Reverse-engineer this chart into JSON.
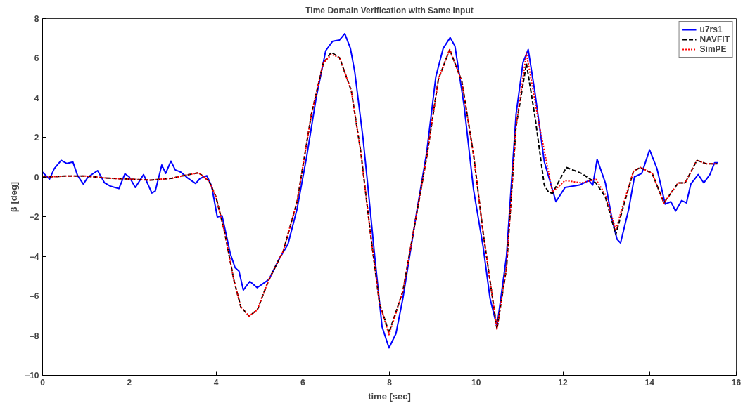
{
  "chart_data": {
    "type": "line",
    "title": "Time Domain Verification with Same Input",
    "xlabel": "time [sec]",
    "ylabel": "β [deg]",
    "xlim": [
      0,
      16
    ],
    "ylim": [
      -10,
      8
    ],
    "xticks": [
      0,
      2,
      4,
      6,
      8,
      10,
      12,
      14,
      16
    ],
    "yticks": [
      -10,
      -8,
      -6,
      -4,
      -2,
      0,
      2,
      4,
      6,
      8
    ],
    "grid": false,
    "legend": "top right",
    "series": [
      {
        "name": "u7rs1",
        "color": "#0000ff",
        "line_style": "solid",
        "x": [
          0,
          0.16,
          0.27,
          0.43,
          0.56,
          0.7,
          0.81,
          0.94,
          1.05,
          1.27,
          1.43,
          1.57,
          1.76,
          1.9,
          2.0,
          2.14,
          2.33,
          2.52,
          2.6,
          2.75,
          2.84,
          2.96,
          3.06,
          3.19,
          3.35,
          3.53,
          3.63,
          3.79,
          3.9,
          4.03,
          4.14,
          4.33,
          4.44,
          4.53,
          4.63,
          4.78,
          4.95,
          5.22,
          5.44,
          5.66,
          5.87,
          6.09,
          6.31,
          6.53,
          6.69,
          6.85,
          6.97,
          7.1,
          7.2,
          7.39,
          7.5,
          7.66,
          7.83,
          7.99,
          8.15,
          8.31,
          8.64,
          8.86,
          9.07,
          9.24,
          9.4,
          9.51,
          9.72,
          9.94,
          10.16,
          10.32,
          10.48,
          10.7,
          10.92,
          11.08,
          11.2,
          11.35,
          11.57,
          11.84,
          12.05,
          12.38,
          12.6,
          12.69,
          12.79,
          12.98,
          13.14,
          13.25,
          13.33,
          13.52,
          13.65,
          13.82,
          14.0,
          14.17,
          14.36,
          14.49,
          14.6,
          14.74,
          14.85,
          14.95,
          15.12,
          15.25,
          15.39,
          15.5,
          15.58
        ],
        "values": [
          0.25,
          -0.1,
          0.43,
          0.85,
          0.69,
          0.76,
          0.07,
          -0.35,
          0.01,
          0.33,
          -0.29,
          -0.46,
          -0.58,
          0.17,
          0.01,
          -0.52,
          0.13,
          -0.8,
          -0.7,
          0.61,
          0.19,
          0.81,
          0.37,
          0.25,
          -0.05,
          -0.32,
          -0.07,
          0.07,
          -0.46,
          -2.01,
          -1.95,
          -3.86,
          -4.57,
          -4.75,
          -5.7,
          -5.26,
          -5.58,
          -5.17,
          -4.2,
          -3.38,
          -1.6,
          1.02,
          4.0,
          6.38,
          6.86,
          6.92,
          7.24,
          6.5,
          5.31,
          1.98,
          -0.4,
          -3.98,
          -7.55,
          -8.62,
          -7.9,
          -6.12,
          -1.6,
          1.26,
          5.07,
          6.5,
          7.04,
          6.62,
          3.64,
          -0.64,
          -3.5,
          -6.12,
          -7.55,
          -3.98,
          3.17,
          5.79,
          6.44,
          4.36,
          0.79,
          -1.24,
          -0.52,
          -0.4,
          -0.17,
          -0.4,
          0.9,
          -0.29,
          -2.19,
          -3.14,
          -3.32,
          -1.6,
          0.01,
          0.19,
          1.38,
          0.43,
          -1.36,
          -1.24,
          -1.71,
          -1.18,
          -1.3,
          -0.35,
          0.13,
          -0.29,
          0.13,
          0.73,
          0.73
        ]
      },
      {
        "name": "NAVFIT",
        "color": "#000000",
        "line_style": "dashed",
        "x": [
          0,
          0.5,
          1.0,
          1.5,
          2.0,
          2.5,
          3.0,
          3.3,
          3.6,
          3.84,
          4.0,
          4.2,
          4.41,
          4.57,
          4.76,
          4.95,
          5.22,
          5.55,
          5.87,
          6.2,
          6.47,
          6.66,
          6.85,
          7.12,
          7.34,
          7.56,
          7.77,
          7.99,
          8.31,
          8.86,
          9.13,
          9.39,
          9.67,
          9.94,
          10.16,
          10.48,
          10.7,
          10.92,
          11.16,
          11.36,
          11.57,
          11.67,
          11.76,
          12.08,
          12.43,
          12.76,
          12.98,
          13.22,
          13.41,
          13.63,
          13.79,
          14.06,
          14.33,
          14.66,
          14.82,
          15.09,
          15.31,
          15.56
        ],
        "values": [
          0.0,
          0.05,
          0.05,
          -0.05,
          -0.1,
          -0.15,
          -0.05,
          0.1,
          0.22,
          -0.2,
          -1.0,
          -2.79,
          -5.17,
          -6.54,
          -7.01,
          -6.71,
          -5.17,
          -3.74,
          -1.24,
          3.17,
          5.73,
          6.3,
          6.02,
          4.36,
          1.26,
          -2.79,
          -6.36,
          -7.85,
          -5.76,
          1.02,
          4.95,
          6.44,
          4.83,
          1.14,
          -2.79,
          -7.67,
          -4.57,
          2.57,
          5.73,
          3.0,
          -0.4,
          -0.76,
          -0.82,
          0.49,
          0.19,
          -0.29,
          -1.0,
          -2.9,
          -1.36,
          0.31,
          0.49,
          0.19,
          -1.3,
          -0.29,
          -0.29,
          0.85,
          0.67,
          0.67
        ]
      },
      {
        "name": "SimPE",
        "color": "#ff0000",
        "line_style": "dotted",
        "x": [
          0,
          0.5,
          1.0,
          1.5,
          2.0,
          2.5,
          3.0,
          3.3,
          3.6,
          3.84,
          4.0,
          4.2,
          4.41,
          4.57,
          4.76,
          4.95,
          5.22,
          5.55,
          5.87,
          6.2,
          6.47,
          6.66,
          6.85,
          7.12,
          7.34,
          7.56,
          7.77,
          7.99,
          8.31,
          8.86,
          9.13,
          9.39,
          9.67,
          9.94,
          10.16,
          10.48,
          10.7,
          10.92,
          11.16,
          11.46,
          11.76,
          12.05,
          12.43,
          12.76,
          12.98,
          13.22,
          13.41,
          13.63,
          13.79,
          14.06,
          14.33,
          14.66,
          14.82,
          15.09,
          15.31,
          15.56
        ],
        "values": [
          0.0,
          0.05,
          0.05,
          -0.05,
          -0.1,
          -0.15,
          -0.05,
          0.1,
          0.22,
          -0.2,
          -1.0,
          -2.79,
          -5.17,
          -6.54,
          -7.01,
          -6.71,
          -5.17,
          -3.74,
          -1.24,
          3.17,
          5.73,
          6.2,
          6.02,
          4.36,
          1.26,
          -2.79,
          -6.36,
          -7.95,
          -5.76,
          1.02,
          4.95,
          6.44,
          4.83,
          1.14,
          -2.79,
          -7.67,
          -4.57,
          2.57,
          6.26,
          2.57,
          -0.76,
          -0.17,
          -0.29,
          -0.11,
          -0.88,
          -2.67,
          -1.24,
          0.31,
          0.49,
          0.19,
          -1.3,
          -0.29,
          -0.29,
          0.85,
          0.67,
          0.67
        ]
      }
    ]
  }
}
